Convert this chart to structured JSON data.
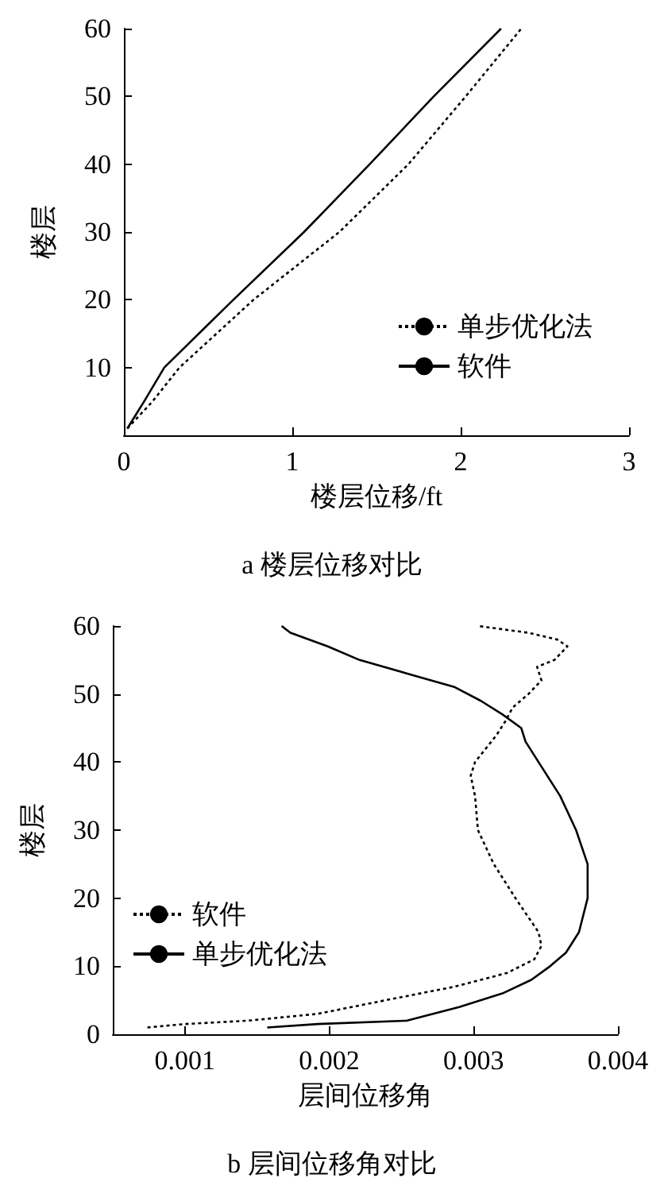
{
  "chart_data": [
    {
      "type": "line",
      "title": "a 楼层位移对比",
      "xlabel": "楼层位移/ft",
      "ylabel": "楼层",
      "xlim": [
        0,
        3
      ],
      "xticks": [
        0,
        1,
        2,
        3
      ],
      "ylim": [
        0,
        60
      ],
      "yticks": [
        10,
        20,
        30,
        40,
        50,
        60
      ],
      "legend": "bottom right",
      "grid": false,
      "marker": "none",
      "series": [
        {
          "name": "单步优化法",
          "color": "#000000",
          "line_style": "dotted",
          "x": [
            0.02,
            0.17,
            0.33,
            0.77,
            1.28,
            1.69,
            2.03,
            2.36
          ],
          "values": [
            1,
            5,
            10,
            20,
            30,
            40,
            50,
            60
          ]
        },
        {
          "name": "软件",
          "color": "#000000",
          "line_style": "solid",
          "x": [
            0.02,
            0.12,
            0.24,
            0.65,
            1.07,
            1.46,
            1.84,
            2.24
          ],
          "values": [
            1,
            5,
            10,
            20,
            30,
            40,
            50,
            60
          ]
        }
      ]
    },
    {
      "type": "line",
      "title": "b 层间位移角对比",
      "xlabel": "层间位移角",
      "ylabel": "楼层",
      "xlim": [
        0.0005,
        0.004
      ],
      "xticks": [
        0.001,
        0.002,
        0.003,
        0.004
      ],
      "ylim": [
        0,
        60
      ],
      "yticks": [
        0,
        10,
        20,
        30,
        40,
        50,
        60
      ],
      "legend": "left",
      "grid": false,
      "marker": "none",
      "series": [
        {
          "name": "软件",
          "color": "#000000",
          "line_style": "dotted",
          "x": [
            0.00074,
            0.001,
            0.00144,
            0.00192,
            0.00239,
            0.00287,
            0.00323,
            0.00342,
            0.00347,
            0.00345,
            0.00329,
            0.00314,
            0.00303,
            0.00301,
            0.00298,
            0.00301,
            0.00316,
            0.00322,
            0.00327,
            0.00338,
            0.00347,
            0.00344,
            0.00356,
            0.00365,
            0.00358,
            0.00338,
            0.00303
          ],
          "values": [
            1,
            1.5,
            2,
            3,
            5,
            7,
            9,
            11,
            13,
            15,
            20,
            25,
            30,
            35,
            38,
            40,
            44,
            46,
            48,
            50,
            52,
            54,
            55,
            57,
            58,
            59,
            60
          ]
        },
        {
          "name": "单步优化法",
          "color": "#000000",
          "line_style": "solid",
          "x": [
            0.00157,
            0.00192,
            0.00254,
            0.00272,
            0.0029,
            0.0032,
            0.0034,
            0.00353,
            0.00364,
            0.00373,
            0.00379,
            0.00379,
            0.00371,
            0.0036,
            0.00345,
            0.00336,
            0.00333,
            0.0032,
            0.00305,
            0.00287,
            0.00254,
            0.00221,
            0.00199,
            0.00173,
            0.00167
          ],
          "values": [
            1,
            1.5,
            2,
            3,
            4,
            6,
            8,
            10,
            12,
            15,
            20,
            25,
            30,
            35,
            40,
            43,
            45,
            47,
            49,
            51,
            53,
            55,
            57,
            59,
            60
          ]
        }
      ]
    }
  ]
}
